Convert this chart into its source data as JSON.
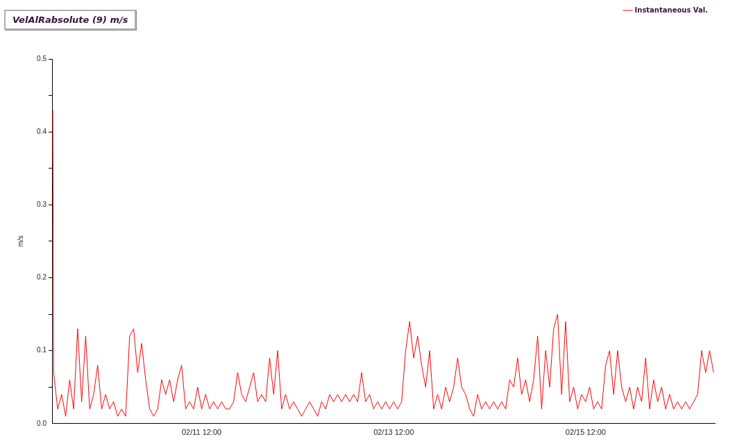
{
  "chart_data": {
    "type": "line",
    "title": "VelAlRabsolute (9) m/s",
    "ylabel": "m/s",
    "x": [
      "--02-09T22:48",
      "--02-09T23:00",
      "--02-10T00:00",
      "--02-10T01:00",
      "--02-10T02:00",
      "--02-10T03:00",
      "--02-10T04:00",
      "--02-10T05:00",
      "--02-10T06:00",
      "--02-10T07:00",
      "--02-10T08:00",
      "--02-10T09:00",
      "--02-10T10:00",
      "--02-10T11:00",
      "--02-10T12:00",
      "--02-10T13:00",
      "--02-10T14:00",
      "--02-10T15:00",
      "--02-10T16:00",
      "--02-10T17:00",
      "--02-10T18:00",
      "--02-10T19:00",
      "--02-10T20:00",
      "--02-10T21:00",
      "--02-10T22:00",
      "--02-10T23:00",
      "--02-11T00:00",
      "--02-11T01:00",
      "--02-11T02:00",
      "--02-11T03:00",
      "--02-11T04:00",
      "--02-11T05:00",
      "--02-11T06:00",
      "--02-11T07:00",
      "--02-11T08:00",
      "--02-11T09:00",
      "--02-11T10:00",
      "--02-11T11:00",
      "--02-11T12:00",
      "--02-11T13:00",
      "--02-11T14:00",
      "--02-11T15:00",
      "--02-11T16:00",
      "--02-11T17:00",
      "--02-11T18:00",
      "--02-11T19:00",
      "--02-11T20:00",
      "--02-11T21:00",
      "--02-11T22:00",
      "--02-11T23:00",
      "--02-12T00:00",
      "--02-12T01:00",
      "--02-12T02:00",
      "--02-12T03:00",
      "--02-12T04:00",
      "--02-12T05:00",
      "--02-12T06:00",
      "--02-12T07:00",
      "--02-12T08:00",
      "--02-12T09:00",
      "--02-12T10:00",
      "--02-12T11:00",
      "--02-12T12:00",
      "--02-12T13:00",
      "--02-12T14:00",
      "--02-12T15:00",
      "--02-12T16:00",
      "--02-12T17:00",
      "--02-12T18:00",
      "--02-12T19:00",
      "--02-12T20:00",
      "--02-12T21:00",
      "--02-12T22:00",
      "--02-12T23:00",
      "--02-13T00:00",
      "--02-13T01:00",
      "--02-13T02:00",
      "--02-13T03:00",
      "--02-13T04:00",
      "--02-13T05:00",
      "--02-13T06:00",
      "--02-13T07:00",
      "--02-13T08:00",
      "--02-13T09:00",
      "--02-13T10:00",
      "--02-13T11:00",
      "--02-13T12:00",
      "--02-13T13:00",
      "--02-13T14:00",
      "--02-13T15:00",
      "--02-13T16:00",
      "--02-13T17:00",
      "--02-13T18:00",
      "--02-13T19:00",
      "--02-13T20:00",
      "--02-13T21:00",
      "--02-13T22:00",
      "--02-13T23:00",
      "--02-14T00:00",
      "--02-14T01:00",
      "--02-14T02:00",
      "--02-14T03:00",
      "--02-14T04:00",
      "--02-14T05:00",
      "--02-14T06:00",
      "--02-14T07:00",
      "--02-14T08:00",
      "--02-14T09:00",
      "--02-14T10:00",
      "--02-14T11:00",
      "--02-14T12:00",
      "--02-14T13:00",
      "--02-14T14:00",
      "--02-14T15:00",
      "--02-14T16:00",
      "--02-14T17:00",
      "--02-14T18:00",
      "--02-14T19:00",
      "--02-14T20:00",
      "--02-14T21:00",
      "--02-14T22:00",
      "--02-14T23:00",
      "--02-15T00:00",
      "--02-15T01:00",
      "--02-15T02:00",
      "--02-15T03:00",
      "--02-15T04:00",
      "--02-15T05:00",
      "--02-15T06:00",
      "--02-15T07:00",
      "--02-15T08:00",
      "--02-15T09:00",
      "--02-15T10:00",
      "--02-15T11:00",
      "--02-15T12:00",
      "--02-15T13:00",
      "--02-15T14:00",
      "--02-15T15:00",
      "--02-15T16:00",
      "--02-15T17:00",
      "--02-15T18:00",
      "--02-15T19:00",
      "--02-15T20:00",
      "--02-15T21:00",
      "--02-15T22:00",
      "--02-15T23:00",
      "--02-16T00:00",
      "--02-16T01:00",
      "--02-16T02:00",
      "--02-16T03:00",
      "--02-16T04:00",
      "--02-16T05:00",
      "--02-16T06:00",
      "--02-16T07:00",
      "--02-16T08:00",
      "--02-16T09:00",
      "--02-16T10:00",
      "--02-16T11:00",
      "--02-16T12:00",
      "--02-16T13:00",
      "--02-16T14:00",
      "--02-16T15:00",
      "--02-16T16:00",
      "--02-16T17:00",
      "--02-16T18:00",
      "--02-16T19:00",
      "--02-16T20:00"
    ],
    "series": [
      {
        "name": "Instantaneous Val.",
        "color": "#ff0000",
        "values": [
          0.43,
          0.07,
          0.02,
          0.04,
          0.01,
          0.06,
          0.02,
          0.13,
          0.03,
          0.12,
          0.02,
          0.04,
          0.08,
          0.02,
          0.04,
          0.02,
          0.03,
          0.01,
          0.02,
          0.01,
          0.12,
          0.13,
          0.07,
          0.11,
          0.06,
          0.02,
          0.01,
          0.02,
          0.06,
          0.04,
          0.06,
          0.03,
          0.06,
          0.08,
          0.02,
          0.03,
          0.02,
          0.05,
          0.02,
          0.04,
          0.02,
          0.03,
          0.02,
          0.03,
          0.02,
          0.02,
          0.03,
          0.07,
          0.04,
          0.03,
          0.05,
          0.07,
          0.03,
          0.04,
          0.03,
          0.09,
          0.04,
          0.1,
          0.02,
          0.04,
          0.02,
          0.03,
          0.02,
          0.01,
          0.02,
          0.03,
          0.02,
          0.01,
          0.03,
          0.02,
          0.04,
          0.03,
          0.04,
          0.03,
          0.04,
          0.03,
          0.04,
          0.03,
          0.07,
          0.03,
          0.04,
          0.02,
          0.03,
          0.02,
          0.03,
          0.02,
          0.03,
          0.02,
          0.03,
          0.1,
          0.14,
          0.09,
          0.12,
          0.08,
          0.05,
          0.1,
          0.02,
          0.04,
          0.02,
          0.05,
          0.03,
          0.05,
          0.09,
          0.05,
          0.04,
          0.02,
          0.01,
          0.04,
          0.02,
          0.03,
          0.02,
          0.03,
          0.02,
          0.03,
          0.02,
          0.06,
          0.05,
          0.09,
          0.04,
          0.06,
          0.03,
          0.06,
          0.12,
          0.02,
          0.1,
          0.05,
          0.13,
          0.15,
          0.04,
          0.14,
          0.03,
          0.05,
          0.02,
          0.04,
          0.03,
          0.05,
          0.02,
          0.03,
          0.02,
          0.08,
          0.1,
          0.04,
          0.1,
          0.05,
          0.03,
          0.05,
          0.02,
          0.05,
          0.03,
          0.09,
          0.02,
          0.06,
          0.03,
          0.05,
          0.02,
          0.04,
          0.02,
          0.03,
          0.02,
          0.03,
          0.02,
          0.03,
          0.04,
          0.1,
          0.07,
          0.1,
          0.07
        ]
      }
    ],
    "xlim": [
      "--02-09T22:36",
      "--02-16T20:18"
    ],
    "xticks": [
      {
        "value": "--02-11T12:00",
        "label": "02/11 12:00"
      },
      {
        "value": "--02-13T12:00",
        "label": "02/13 12:00"
      },
      {
        "value": "--02-15T12:00",
        "label": "02/15 12:00"
      }
    ],
    "ylim": [
      0,
      0.5
    ],
    "yticks": [
      {
        "value": 0,
        "label": "0.0"
      },
      {
        "value": 0.05,
        "label": null
      },
      0.1,
      {
        "value": 0.15,
        "label": null
      },
      0.2,
      {
        "value": 0.25,
        "label": null
      },
      0.3,
      {
        "value": 0.35,
        "label": null
      },
      0.4,
      {
        "value": 0.45,
        "label": null
      },
      0.5
    ],
    "grid": false,
    "legend": "top right",
    "marker": "none",
    "line_style": "solid"
  }
}
